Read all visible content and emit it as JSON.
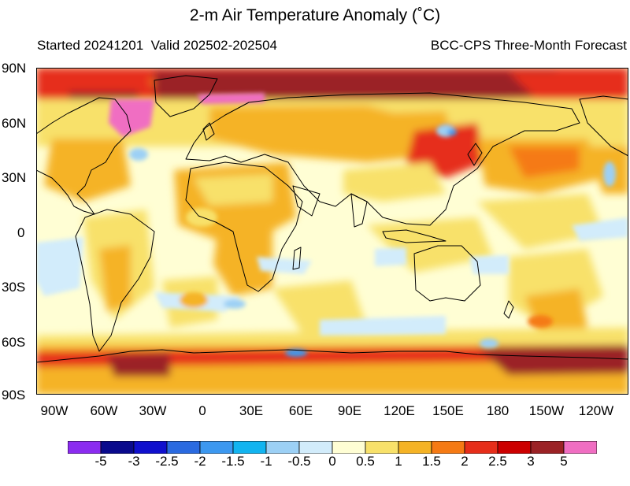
{
  "title": "2-m Air Temperature Anomaly (˚C)",
  "subtitle_left": "Started 20241201  Valid 202502-202504",
  "subtitle_right": "BCC-CPS Three-Month Forecast",
  "lat_labels": [
    "90N",
    "60N",
    "30N",
    "0",
    "30S",
    "60S",
    "90S"
  ],
  "lon_labels": [
    "90W",
    "60W",
    "30W",
    "0",
    "30E",
    "60E",
    "90E",
    "120E",
    "150E",
    "180",
    "150W",
    "120W"
  ],
  "colorbar": {
    "labels": [
      "-5",
      "-3",
      "-2.5",
      "-2",
      "-1.5",
      "-1",
      "-0.5",
      "0",
      "0.5",
      "1",
      "1.5",
      "2",
      "2.5",
      "3",
      "5"
    ],
    "colors": [
      "#8b2cf0",
      "#0a0a8c",
      "#1010cd",
      "#2a6ae0",
      "#3c98f0",
      "#12b4f0",
      "#9cd0f5",
      "#d2ecfb",
      "#fffed4",
      "#f8e16a",
      "#f5b325",
      "#f57a14",
      "#e62e1a",
      "#cc0000",
      "#9b2226",
      "#f06ec2"
    ]
  },
  "palette": {
    "base": "#fffed4",
    "light_yellow": "#f8e16a",
    "orange": "#f5b325",
    "dark_orange": "#f57a14",
    "red": "#e62e1a",
    "dark_red": "#9b2226",
    "pink": "#f06ec2",
    "light_blue": "#d2ecfb",
    "blue": "#9cd0f5",
    "mid_blue": "#3c98f0"
  }
}
